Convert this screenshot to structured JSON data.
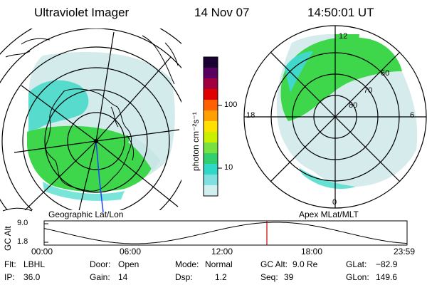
{
  "header": {
    "instrument": "Ultraviolet Imager",
    "date": "14 Nov 07",
    "time": "14:50:01 UT"
  },
  "left_map": {
    "caption": "Geographic Lat/Lon",
    "colors": {
      "aurora": "#3ed64a",
      "diffuse": "#40d8c8",
      "faint": "#c8e6e6",
      "land": "#000000"
    }
  },
  "right_map": {
    "caption": "Apex MLat/MLT",
    "mlt_labels": {
      "top": "12",
      "left": "18",
      "right": "6",
      "bottom": "0"
    },
    "lat_labels": [
      "60",
      "70",
      "80"
    ]
  },
  "colorbar": {
    "unit_label": "photon cm⁻²s⁻¹",
    "ticks": [
      "100",
      "10"
    ],
    "colors_top_to_bottom": [
      "#1a0033",
      "#5a0060",
      "#a00040",
      "#e00000",
      "#ff6000",
      "#ffa000",
      "#ffe000",
      "#c8f000",
      "#78e040",
      "#30d070",
      "#30d8c8",
      "#80e0e0",
      "#d0f0f0"
    ]
  },
  "altitude_plot": {
    "ylabel": "GC Alt",
    "yticks": [
      "9.0",
      "1.8"
    ],
    "xticks": [
      "00:00",
      "06:00",
      "12:00",
      "18:00",
      "23:59"
    ],
    "marker_color": "#c00000"
  },
  "info": {
    "filter_label": "Flt:",
    "filter_value": "LBHL",
    "ip_label": "IP:",
    "ip_value": "36.0",
    "door_label": "Door:",
    "door_value": "Open",
    "gain_label": "Gain:",
    "gain_value": "14",
    "mode_label": "Mode:",
    "mode_value": "Normal",
    "dsp_label": "Dsp:",
    "dsp_value": "1.2",
    "gcalt_label": "GC Alt:",
    "gcalt_value": "9.0 Re",
    "seq_label": "Seq:",
    "seq_value": "39",
    "glat_label": "GLat:",
    "glat_value": "−82.9",
    "glon_label": "GLon:",
    "glon_value": "149.6"
  }
}
